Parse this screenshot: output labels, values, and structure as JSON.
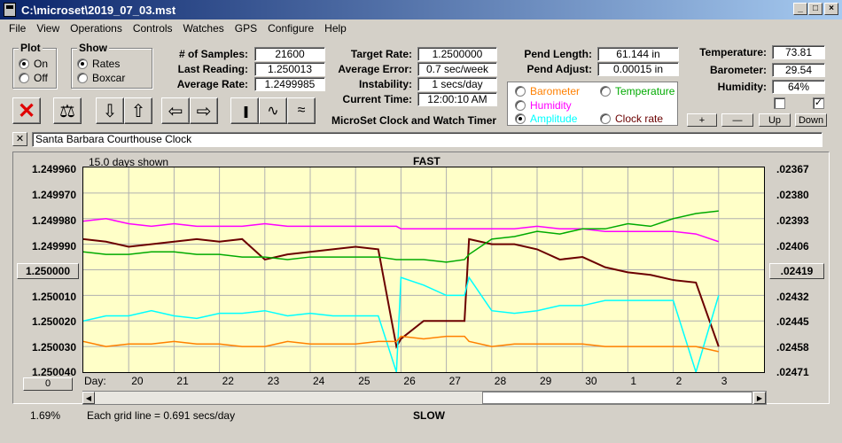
{
  "window": {
    "title": "C:\\microset\\2019_07_03.mst"
  },
  "menu": [
    "File",
    "View",
    "Operations",
    "Controls",
    "Watches",
    "GPS",
    "Configure",
    "Help"
  ],
  "plot_group": {
    "title": "Plot",
    "on": "On",
    "off": "Off"
  },
  "show_group": {
    "title": "Show",
    "rates": "Rates",
    "boxcar": "Boxcar"
  },
  "stats": {
    "samples_label": "# of Samples:",
    "samples": "21600",
    "last_label": "Last Reading:",
    "last": "1.250013",
    "avg_label": "Average Rate:",
    "avg": "1.2499985",
    "target_label": "Target Rate:",
    "target": "1.2500000",
    "avgerr_label": "Average Error:",
    "avgerr": "0.7 sec/week",
    "instab_label": "Instability:",
    "instab": "1 secs/day",
    "time_label": "Current Time:",
    "time": "12:00:10 AM",
    "pendlen_label": "Pend Length:",
    "pendlen": "61.144 in",
    "pendadj_label": "Pend Adjust:",
    "pendadj": "0.00015 in",
    "temp_label": "Temperature:",
    "temp": "73.81",
    "baro_label": "Barometer:",
    "baro": "29.54",
    "hum_label": "Humidity:",
    "hum": "64%"
  },
  "app_name": "MicroSet Clock and Watch Timer",
  "series_select": {
    "barometer": "Barometer",
    "temperature": "Temperature",
    "humidity": "Humidity",
    "amplitude": "Amplitude",
    "clock_rate": "Clock rate"
  },
  "buttons": {
    "plus": "+",
    "minus": "—",
    "up": "Up",
    "down": "Down",
    "zero": "0",
    "close_x": "✕"
  },
  "clock_name": "Santa Barbara Courthouse Clock",
  "chart_header": {
    "days_shown": "15.0 days shown",
    "fast": "FAST",
    "slow": "SLOW",
    "day_label": "Day:",
    "grid_note": "Each grid line = 0.691 secs/day",
    "percent": "1.69%"
  },
  "colors": {
    "rate": "#6b0000",
    "barometer": "#ff8000",
    "humidity": "#ff00ff",
    "temperature": "#00aa00",
    "amplitude": "#00ffff"
  },
  "chart_data": {
    "type": "line",
    "x_tick_labels": [
      "20",
      "21",
      "22",
      "23",
      "24",
      "25",
      "26",
      "27",
      "28",
      "29",
      "30",
      "1",
      "2",
      "3"
    ],
    "y_left_ticks": [
      "1.249960",
      "1.249970",
      "1.249980",
      "1.249990",
      "1.250000",
      "1.250010",
      "1.250020",
      "1.250030",
      "1.250040"
    ],
    "y_right_ticks": [
      ".02367",
      ".02380",
      ".02393",
      ".02406",
      ".02419",
      ".02432",
      ".02445",
      ".02458",
      ".02471"
    ],
    "ylim_left": [
      1.25004,
      1.24996
    ],
    "x": [
      0,
      0.5,
      1,
      1.5,
      2,
      2.5,
      3,
      3.5,
      4,
      4.5,
      5,
      5.5,
      6,
      6.5,
      6.9,
      7,
      7.5,
      8,
      8.4,
      8.5,
      9,
      9.5,
      10,
      10.5,
      11,
      11.5,
      12,
      12.5,
      13,
      13.5,
      14
    ],
    "series": [
      {
        "name": "Clock rate",
        "color": "#6b0000",
        "values": [
          1.249988,
          1.249989,
          1.249991,
          1.24999,
          1.249989,
          1.249988,
          1.249989,
          1.249988,
          1.249996,
          1.249994,
          1.249993,
          1.249992,
          1.249991,
          1.249992,
          1.25003,
          1.250027,
          1.25002,
          1.25002,
          1.25002,
          1.249988,
          1.24999,
          1.24999,
          1.249992,
          1.249996,
          1.249995,
          1.249999,
          1.250001,
          1.250002,
          1.250004,
          1.250005,
          1.25003
        ]
      },
      {
        "name": "Humidity",
        "color": "#ff00ff",
        "values": [
          1.249981,
          1.24998,
          1.249982,
          1.249983,
          1.249982,
          1.249983,
          1.249983,
          1.249983,
          1.249982,
          1.249983,
          1.249983,
          1.249983,
          1.249983,
          1.249983,
          1.249983,
          1.249984,
          1.249984,
          1.249984,
          1.249984,
          1.249984,
          1.249984,
          1.249984,
          1.249983,
          1.249984,
          1.249984,
          1.249985,
          1.249985,
          1.249985,
          1.249985,
          1.249986,
          1.249989
        ]
      },
      {
        "name": "Temperature",
        "color": "#00aa00",
        "values": [
          1.249993,
          1.249994,
          1.249994,
          1.249993,
          1.249993,
          1.249994,
          1.249994,
          1.249995,
          1.249995,
          1.249996,
          1.249995,
          1.249995,
          1.249995,
          1.249995,
          1.249996,
          1.249996,
          1.249996,
          1.249997,
          1.249996,
          1.249994,
          1.249988,
          1.249987,
          1.249985,
          1.249986,
          1.249984,
          1.249984,
          1.249982,
          1.249983,
          1.24998,
          1.249978,
          1.249977
        ]
      },
      {
        "name": "Amplitude",
        "color": "#00ffff",
        "values": [
          1.25002,
          1.250018,
          1.250018,
          1.250016,
          1.250018,
          1.250019,
          1.250017,
          1.250017,
          1.250016,
          1.250018,
          1.250017,
          1.250018,
          1.250018,
          1.250018,
          1.25004,
          1.250003,
          1.250006,
          1.25001,
          1.25001,
          1.250003,
          1.250016,
          1.250017,
          1.250016,
          1.250014,
          1.250014,
          1.250012,
          1.250012,
          1.250012,
          1.250012,
          1.25004,
          1.25001
        ]
      },
      {
        "name": "Barometer",
        "color": "#ff8000",
        "values": [
          1.250028,
          1.25003,
          1.250029,
          1.250029,
          1.250028,
          1.250029,
          1.250029,
          1.25003,
          1.25003,
          1.250028,
          1.250029,
          1.250029,
          1.250029,
          1.250028,
          1.250028,
          1.250026,
          1.250027,
          1.250026,
          1.250026,
          1.250028,
          1.25003,
          1.250029,
          1.250029,
          1.250029,
          1.250029,
          1.25003,
          1.25003,
          1.25003,
          1.25003,
          1.25003,
          1.250032
        ]
      }
    ]
  }
}
